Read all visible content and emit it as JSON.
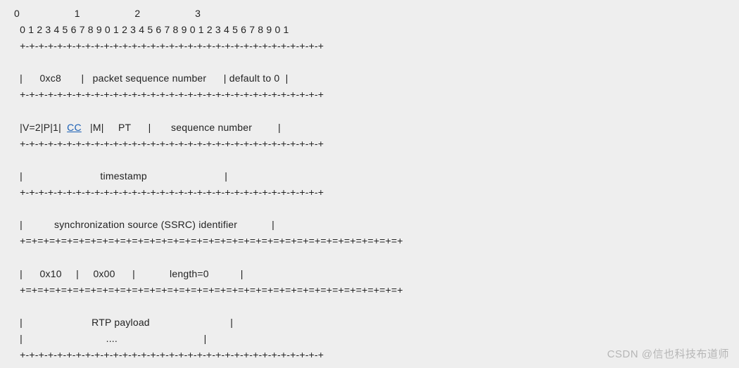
{
  "diagram": {
    "background_color": "#eeeeee",
    "text_color": "#222222",
    "link_color": "#1a5fb4",
    "font_family": "Segoe UI / Microsoft YaHei",
    "font_size_pt": 11,
    "line_height": 1.65,
    "ruler": {
      "byte_markers": "0                   1                   2                   3",
      "bit_scale": "  0 1 2 3 4 5 6 7 8 9 0 1 2 3 4 5 6 7 8 9 0 1 2 3 4 5 6 7 8 9 0 1"
    },
    "border": {
      "dash": "  +-+-+-+-+-+-+-+-+-+-+-+-+-+-+-+-+-+-+-+-+-+-+-+-+-+-+-+-+-+-+-+-+",
      "equal": "  +=+=+=+=+=+=+=+=+=+=+=+=+=+=+=+=+=+=+=+=+=+=+=+=+=+=+=+=+=+=+=+=+"
    },
    "rows": {
      "r1": {
        "prefix": "  |      0xc8       |   packet sequence number      | default to 0  |",
        "fields": [
          "0xc8",
          "packet sequence number",
          "default to 0"
        ]
      },
      "r2": {
        "prefix": "  |V=2|P|1|  ",
        "cc": "CC",
        "suffix": "   |M|     PT      |       sequence number         |",
        "fields": [
          "V=2",
          "P",
          "1",
          "CC",
          "M",
          "PT",
          "sequence number"
        ]
      },
      "r3": {
        "line": "  |                           timestamp                           |",
        "fields": [
          "timestamp"
        ]
      },
      "r4": {
        "line": "  |           synchronization source (SSRC) identifier            |",
        "fields": [
          "synchronization source (SSRC) identifier"
        ]
      },
      "r5": {
        "line": "  |      0x10     |     0x00      |            length=0           |",
        "fields": [
          "0x10",
          "0x00",
          "length=0"
        ]
      },
      "r6": {
        "line1": "  |                        RTP payload                            |",
        "line2": "  |                             ....                              |",
        "fields": [
          "RTP payload",
          "...."
        ]
      }
    }
  },
  "watermark": "CSDN @信也科技布道师"
}
